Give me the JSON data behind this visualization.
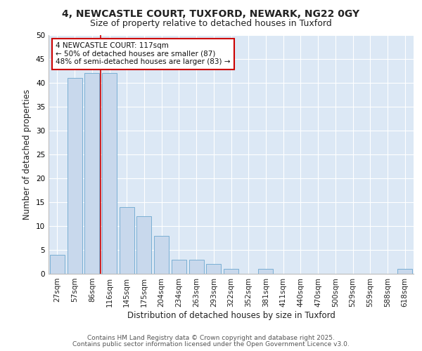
{
  "title1": "4, NEWCASTLE COURT, TUXFORD, NEWARK, NG22 0GY",
  "title2": "Size of property relative to detached houses in Tuxford",
  "xlabel": "Distribution of detached houses by size in Tuxford",
  "ylabel": "Number of detached properties",
  "categories": [
    "27sqm",
    "57sqm",
    "86sqm",
    "116sqm",
    "145sqm",
    "175sqm",
    "204sqm",
    "234sqm",
    "263sqm",
    "293sqm",
    "322sqm",
    "352sqm",
    "381sqm",
    "411sqm",
    "440sqm",
    "470sqm",
    "500sqm",
    "529sqm",
    "559sqm",
    "588sqm",
    "618sqm"
  ],
  "values": [
    4,
    41,
    42,
    42,
    14,
    12,
    8,
    3,
    3,
    2,
    1,
    0,
    1,
    0,
    0,
    0,
    0,
    0,
    0,
    0,
    1
  ],
  "bar_color": "#c8d8ec",
  "bar_edge_color": "#7aafd4",
  "vline_x": 2.5,
  "vline_color": "#cc0000",
  "annotation_box_text": "4 NEWCASTLE COURT: 117sqm\n← 50% of detached houses are smaller (87)\n48% of semi-detached houses are larger (83) →",
  "annotation_box_color": "#cc0000",
  "annotation_fontsize": 7.5,
  "ylim": [
    0,
    50
  ],
  "yticks": [
    0,
    5,
    10,
    15,
    20,
    25,
    30,
    35,
    40,
    45,
    50
  ],
  "plot_bg_color": "#dce8f5",
  "grid_color": "#ffffff",
  "footer1": "Contains HM Land Registry data © Crown copyright and database right 2025.",
  "footer2": "Contains public sector information licensed under the Open Government Licence v3.0.",
  "title1_fontsize": 10,
  "title2_fontsize": 9,
  "xlabel_fontsize": 8.5,
  "ylabel_fontsize": 8.5,
  "tick_fontsize": 7.5,
  "footer_fontsize": 6.5
}
